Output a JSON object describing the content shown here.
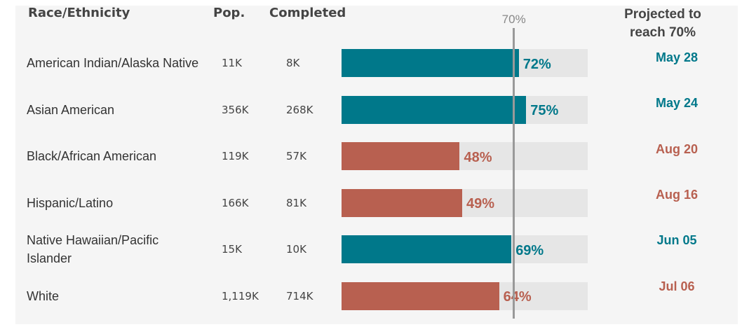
{
  "chart_data": {
    "type": "bar",
    "orientation": "horizontal",
    "headers": {
      "category": "Race/Ethnicity",
      "pop": "Pop.",
      "completed": "Completed",
      "projected": "Projected to reach 70%"
    },
    "categories": [
      "American Indian/Alaska Native",
      "Asian American",
      "Black/African American",
      "Hispanic/Latino",
      "Native Hawaiian/Pacific Islander",
      "White"
    ],
    "pop": [
      "11K",
      "356K",
      "119K",
      "166K",
      "15K",
      "1,119K"
    ],
    "completed": [
      "8K",
      "268K",
      "57K",
      "81K",
      "10K",
      "714K"
    ],
    "values": [
      72,
      75,
      48,
      49,
      69,
      64
    ],
    "value_labels": [
      "72%",
      "75%",
      "48%",
      "49%",
      "69%",
      "64%"
    ],
    "projected": [
      "May 28",
      "May 24",
      "Aug 20",
      "Aug 16",
      "Jun 05",
      "Jul 06"
    ],
    "colors": [
      "#00788a",
      "#00788a",
      "#b86050",
      "#b86050",
      "#00788a",
      "#b86050"
    ],
    "xlim": [
      0,
      100
    ],
    "reference_line": {
      "value": 70,
      "label": "70%"
    }
  }
}
